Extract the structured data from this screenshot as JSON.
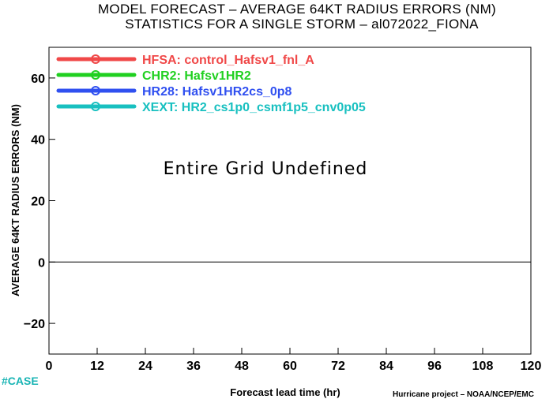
{
  "chart_data": {
    "type": "line",
    "title_line1": "MODEL FORECAST – AVERAGE 64KT RADIUS ERRORS (NM)",
    "title_line2": "STATISTICS FOR A SINGLE STORM – al072022_FIONA",
    "xlabel": "Forecast lead time (hr)",
    "ylabel": "AVERAGE 64KT RADIUS ERRORS (NM)",
    "xlim": [
      0,
      120
    ],
    "ylim": [
      -30,
      70
    ],
    "xticks": [
      0,
      12,
      24,
      36,
      48,
      60,
      72,
      84,
      96,
      108,
      120
    ],
    "yticks": [
      -20,
      0,
      20,
      40,
      60
    ],
    "x_tick_labels": [
      "0",
      "12",
      "24",
      "36",
      "48",
      "60",
      "72",
      "84",
      "96",
      "108",
      "120"
    ],
    "y_tick_labels": [
      "−20",
      "0",
      "20",
      "40",
      "60"
    ],
    "zero_line": 0,
    "center_message": "Entire Grid Undefined",
    "legend_position": "top-left",
    "series": [
      {
        "name": "HFSA:  control_Hafsv1_fnl_A",
        "color": "#f04848",
        "values": []
      },
      {
        "name": "CHR2:  Hafsv1HR2",
        "color": "#20d020",
        "values": []
      },
      {
        "name": "HR28:  Hafsv1HR2cs_0p8",
        "color": "#3050f0",
        "values": []
      },
      {
        "name": "XEXT:  HR2_cs1p0_csmf1p5_cnv0p05",
        "color": "#18c0c0",
        "values": []
      }
    ]
  },
  "footer": {
    "case_label": "#CASE",
    "credit": "Hurricane project – NOAA/NCEP/EMC"
  }
}
